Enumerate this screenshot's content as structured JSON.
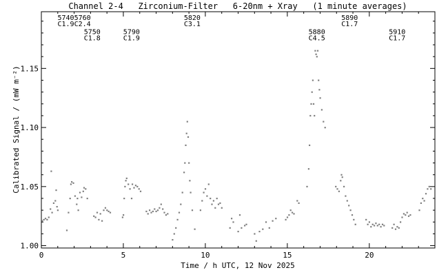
{
  "chart_data": {
    "type": "scatter",
    "title": "Channel 2-4   Zirconium-Filter   6-20nm + Xray   (1 minute averages)",
    "xlabel": "Time / h UTC, 12 Nov 2025",
    "ylabel": "Calibrated Signal / (mW m⁻²)",
    "xlim": [
      0,
      24
    ],
    "ylim": [
      0.998,
      1.198
    ],
    "x_ticks": [
      0,
      5,
      10,
      15,
      20
    ],
    "x_tick_labels": [
      "0",
      "5",
      "10",
      "15",
      "20"
    ],
    "y_ticks": [
      1.0,
      1.05,
      1.1,
      1.15
    ],
    "y_tick_labels": [
      "1.00",
      "1.05",
      "1.10",
      "1.15"
    ],
    "grid": false,
    "point_color": "#7f7f7f",
    "series": [
      {
        "points": [
          [
            0.05,
            1.021
          ],
          [
            0.15,
            1.022
          ],
          [
            0.25,
            1.023
          ],
          [
            0.35,
            1.022
          ],
          [
            0.45,
            1.024
          ],
          [
            0.55,
            1.031
          ],
          [
            0.6,
            1.063
          ],
          [
            0.65,
            1.028
          ],
          [
            0.75,
            1.036
          ],
          [
            0.85,
            1.038
          ],
          [
            0.9,
            1.047
          ],
          [
            0.95,
            1.033
          ],
          [
            1.0,
            1.03
          ],
          [
            1.55,
            1.013
          ],
          [
            1.65,
            1.028
          ],
          [
            1.75,
            1.04
          ],
          [
            1.8,
            1.052
          ],
          [
            1.85,
            1.054
          ],
          [
            1.95,
            1.053
          ],
          [
            2.05,
            1.042
          ],
          [
            2.15,
            1.035
          ],
          [
            2.2,
            1.04
          ],
          [
            2.25,
            1.03
          ],
          [
            2.35,
            1.045
          ],
          [
            2.45,
            1.041
          ],
          [
            2.55,
            1.046
          ],
          [
            2.6,
            1.049
          ],
          [
            2.7,
            1.048
          ],
          [
            2.8,
            1.04
          ],
          [
            3.2,
            1.025
          ],
          [
            3.3,
            1.024
          ],
          [
            3.4,
            1.028
          ],
          [
            3.5,
            1.022
          ],
          [
            3.6,
            1.027
          ],
          [
            3.7,
            1.021
          ],
          [
            3.8,
            1.03
          ],
          [
            3.9,
            1.032
          ],
          [
            4.0,
            1.03
          ],
          [
            4.1,
            1.029
          ],
          [
            4.2,
            1.028
          ],
          [
            4.95,
            1.024
          ],
          [
            5.0,
            1.026
          ],
          [
            5.05,
            1.04
          ],
          [
            5.1,
            1.05
          ],
          [
            5.15,
            1.055
          ],
          [
            5.2,
            1.057
          ],
          [
            5.3,
            1.052
          ],
          [
            5.4,
            1.048
          ],
          [
            5.5,
            1.04
          ],
          [
            5.55,
            1.052
          ],
          [
            5.65,
            1.049
          ],
          [
            5.75,
            1.051
          ],
          [
            5.85,
            1.05
          ],
          [
            5.95,
            1.048
          ],
          [
            6.05,
            1.046
          ],
          [
            6.4,
            1.029
          ],
          [
            6.5,
            1.027
          ],
          [
            6.6,
            1.03
          ],
          [
            6.7,
            1.028
          ],
          [
            6.8,
            1.029
          ],
          [
            6.9,
            1.031
          ],
          [
            7.0,
            1.029
          ],
          [
            7.1,
            1.03
          ],
          [
            7.2,
            1.032
          ],
          [
            7.3,
            1.035
          ],
          [
            7.4,
            1.031
          ],
          [
            7.5,
            1.028
          ],
          [
            7.6,
            1.026
          ],
          [
            7.7,
            1.027
          ],
          [
            8.0,
            1.005
          ],
          [
            8.1,
            1.01
          ],
          [
            8.2,
            1.015
          ],
          [
            8.3,
            1.022
          ],
          [
            8.4,
            1.028
          ],
          [
            8.5,
            1.035
          ],
          [
            8.6,
            1.045
          ],
          [
            8.7,
            1.062
          ],
          [
            8.75,
            1.07
          ],
          [
            8.8,
            1.085
          ],
          [
            8.85,
            1.095
          ],
          [
            8.9,
            1.105
          ],
          [
            8.95,
            1.092
          ],
          [
            9.0,
            1.07
          ],
          [
            9.05,
            1.055
          ],
          [
            9.1,
            1.045
          ],
          [
            9.2,
            1.03
          ],
          [
            9.35,
            1.014
          ],
          [
            9.7,
            1.03
          ],
          [
            9.8,
            1.038
          ],
          [
            9.9,
            1.045
          ],
          [
            10.0,
            1.048
          ],
          [
            10.1,
            1.042
          ],
          [
            10.2,
            1.052
          ],
          [
            10.3,
            1.04
          ],
          [
            10.4,
            1.035
          ],
          [
            10.5,
            1.038
          ],
          [
            10.6,
            1.032
          ],
          [
            10.7,
            1.04
          ],
          [
            10.8,
            1.035
          ],
          [
            10.9,
            1.036
          ],
          [
            11.0,
            1.032
          ],
          [
            11.5,
            1.015
          ],
          [
            11.6,
            1.023
          ],
          [
            11.7,
            1.02
          ],
          [
            12.0,
            1.012
          ],
          [
            12.1,
            1.026
          ],
          [
            12.2,
            1.015
          ],
          [
            12.4,
            1.017
          ],
          [
            12.5,
            1.018
          ],
          [
            13.0,
            1.01
          ],
          [
            13.1,
            1.004
          ],
          [
            13.3,
            1.012
          ],
          [
            13.5,
            1.014
          ],
          [
            13.7,
            1.02
          ],
          [
            13.9,
            1.015
          ],
          [
            14.1,
            1.021
          ],
          [
            14.3,
            1.023
          ],
          [
            14.9,
            1.022
          ],
          [
            15.0,
            1.024
          ],
          [
            15.1,
            1.026
          ],
          [
            15.2,
            1.03
          ],
          [
            15.3,
            1.028
          ],
          [
            15.4,
            1.027
          ],
          [
            15.6,
            1.038
          ],
          [
            15.7,
            1.036
          ],
          [
            16.2,
            1.05
          ],
          [
            16.3,
            1.065
          ],
          [
            16.35,
            1.085
          ],
          [
            16.4,
            1.11
          ],
          [
            16.45,
            1.12
          ],
          [
            16.5,
            1.13
          ],
          [
            16.55,
            1.14
          ],
          [
            16.6,
            1.12
          ],
          [
            16.65,
            1.11
          ],
          [
            16.7,
            1.165
          ],
          [
            16.75,
            1.162
          ],
          [
            16.8,
            1.16
          ],
          [
            16.85,
            1.165
          ],
          [
            16.9,
            1.14
          ],
          [
            16.95,
            1.132
          ],
          [
            17.0,
            1.125
          ],
          [
            17.1,
            1.115
          ],
          [
            17.2,
            1.105
          ],
          [
            17.3,
            1.1
          ],
          [
            17.95,
            1.05
          ],
          [
            18.05,
            1.048
          ],
          [
            18.15,
            1.046
          ],
          [
            18.25,
            1.055
          ],
          [
            18.3,
            1.06
          ],
          [
            18.35,
            1.058
          ],
          [
            18.45,
            1.05
          ],
          [
            18.55,
            1.042
          ],
          [
            18.65,
            1.038
          ],
          [
            18.75,
            1.034
          ],
          [
            18.85,
            1.03
          ],
          [
            18.95,
            1.026
          ],
          [
            19.05,
            1.022
          ],
          [
            19.15,
            1.018
          ],
          [
            19.8,
            1.022
          ],
          [
            19.9,
            1.018
          ],
          [
            20.0,
            1.02
          ],
          [
            20.1,
            1.016
          ],
          [
            20.2,
            1.018
          ],
          [
            20.3,
            1.017
          ],
          [
            20.4,
            1.019
          ],
          [
            20.5,
            1.017
          ],
          [
            20.6,
            1.018
          ],
          [
            20.7,
            1.016
          ],
          [
            20.8,
            1.018
          ],
          [
            20.9,
            1.017
          ],
          [
            21.4,
            1.015
          ],
          [
            21.5,
            1.018
          ],
          [
            21.6,
            1.014
          ],
          [
            21.7,
            1.016
          ],
          [
            21.8,
            1.015
          ],
          [
            21.9,
            1.02
          ],
          [
            22.0,
            1.024
          ],
          [
            22.1,
            1.027
          ],
          [
            22.2,
            1.026
          ],
          [
            22.3,
            1.028
          ],
          [
            22.4,
            1.025
          ],
          [
            22.5,
            1.026
          ],
          [
            23.05,
            1.03
          ],
          [
            23.15,
            1.036
          ],
          [
            23.25,
            1.04
          ],
          [
            23.35,
            1.038
          ],
          [
            23.45,
            1.044
          ],
          [
            23.55,
            1.048
          ],
          [
            23.65,
            1.05
          ],
          [
            23.75,
            1.048
          ]
        ]
      }
    ],
    "annotations": [
      {
        "lines": [
          "5740",
          "C1.9"
        ],
        "x": 2.0,
        "y": 1.191,
        "align": "end"
      },
      {
        "lines": [
          "5760",
          "C2.4"
        ],
        "x": 2.0,
        "y": 1.191,
        "align": "start"
      },
      {
        "lines": [
          "5750",
          "C1.8"
        ],
        "x": 3.1,
        "y": 1.179,
        "align": "middle"
      },
      {
        "lines": [
          "5790",
          "C1.9"
        ],
        "x": 5.5,
        "y": 1.179,
        "align": "middle"
      },
      {
        "lines": [
          "5820",
          "C3.1"
        ],
        "x": 9.2,
        "y": 1.191,
        "align": "middle"
      },
      {
        "lines": [
          "5880",
          "C4.5"
        ],
        "x": 16.8,
        "y": 1.179,
        "align": "middle"
      },
      {
        "lines": [
          "5890",
          "C1.7"
        ],
        "x": 18.8,
        "y": 1.191,
        "align": "middle"
      },
      {
        "lines": [
          "5910",
          "C1.7"
        ],
        "x": 21.7,
        "y": 1.179,
        "align": "middle"
      }
    ]
  }
}
